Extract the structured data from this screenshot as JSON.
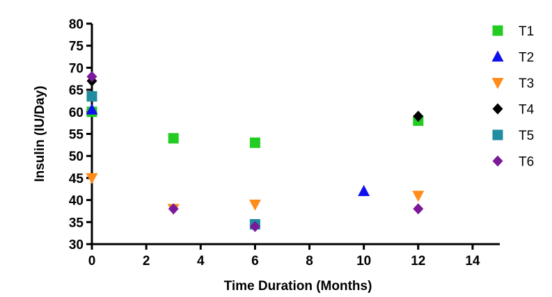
{
  "chart_data": {
    "type": "scatter",
    "title": "",
    "xlabel": "Time Duration (Months)",
    "ylabel": "Insulin (IU/Day)",
    "xlim": [
      0,
      15
    ],
    "ylim": [
      30,
      80
    ],
    "xticks": [
      0,
      2,
      4,
      6,
      8,
      10,
      12,
      14
    ],
    "yticks": [
      30,
      35,
      40,
      45,
      50,
      55,
      60,
      65,
      70,
      75,
      80
    ],
    "grid": false,
    "legend_position": "top-right",
    "series": [
      {
        "name": "T1",
        "marker": "square",
        "color": "#22cc22",
        "points": [
          [
            0,
            60
          ],
          [
            3,
            54
          ],
          [
            6,
            53
          ],
          [
            12,
            58
          ]
        ]
      },
      {
        "name": "T2",
        "marker": "triangle-up",
        "color": "#1010ee",
        "points": [
          [
            0,
            60.5
          ],
          [
            10,
            42
          ]
        ]
      },
      {
        "name": "T3",
        "marker": "triangle-down",
        "color": "#ff8c1a",
        "points": [
          [
            0,
            45
          ],
          [
            3,
            38
          ],
          [
            6,
            39
          ],
          [
            12,
            41
          ]
        ]
      },
      {
        "name": "T4",
        "marker": "diamond",
        "color": "#000000",
        "points": [
          [
            0,
            67
          ],
          [
            12,
            59
          ]
        ]
      },
      {
        "name": "T5",
        "marker": "square",
        "color": "#1f8ca0",
        "points": [
          [
            0,
            63.5
          ],
          [
            6,
            34.5
          ]
        ]
      },
      {
        "name": "T6",
        "marker": "diamond",
        "color": "#7a1a9a",
        "points": [
          [
            0,
            68
          ],
          [
            3,
            38
          ],
          [
            6,
            34
          ],
          [
            12,
            38
          ]
        ]
      }
    ]
  }
}
